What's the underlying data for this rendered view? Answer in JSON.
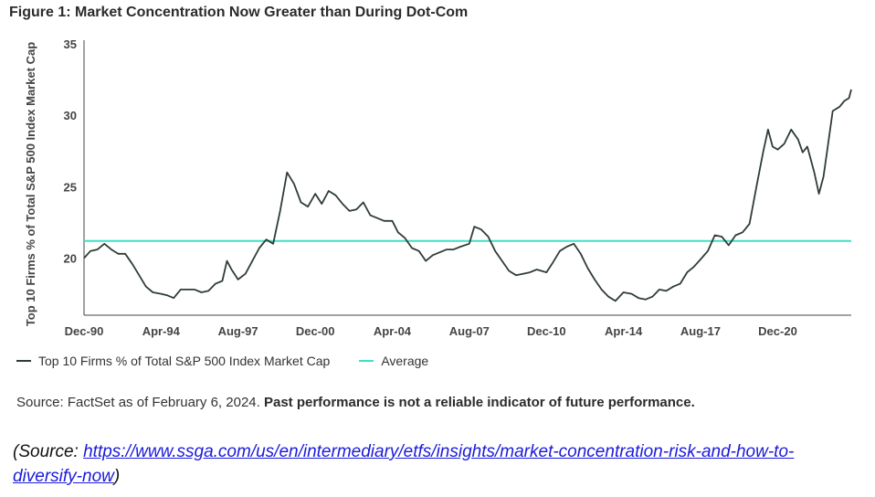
{
  "figure_title": "Figure 1: Market Concentration Now Greater than During Dot-Com",
  "legend": {
    "series_label": "Top 10 Firms % of Total S&P 500 Index Market Cap",
    "average_label": "Average"
  },
  "source": {
    "text": "Source: FactSet as of February 6, 2024.",
    "disclaimer": "Past performance is not a reliable indicator of future performance."
  },
  "url_note": {
    "prefix": "(Source: ",
    "link": "https://www.ssga.com/us/en/intermediary/etfs/insights/market-concentration-risk-and-how-to-diversify-now",
    "suffix": ")"
  },
  "colors": {
    "series": "#2f3d35",
    "average": "#3fe0c5"
  },
  "chart_data": {
    "type": "line",
    "title": "Figure 1: Market Concentration Now Greater than During Dot-Com",
    "ylabel": "Top 10 Firms % of Total S&P 500 Index Market Cap",
    "ylim": [
      16,
      35
    ],
    "xlim": [
      1990.92,
      2024.1
    ],
    "yticks": [
      "20",
      "25",
      "30",
      "35"
    ],
    "xticks": [
      {
        "label": "Dec-90",
        "x": 1990.92
      },
      {
        "label": "Apr-94",
        "x": 1994.25
      },
      {
        "label": "Aug-97",
        "x": 1997.58
      },
      {
        "label": "Dec-00",
        "x": 2000.92
      },
      {
        "label": "Apr-04",
        "x": 2004.25
      },
      {
        "label": "Aug-07",
        "x": 2007.58
      },
      {
        "label": "Dec-10",
        "x": 2010.92
      },
      {
        "label": "Apr-14",
        "x": 2014.25
      },
      {
        "label": "Aug-17",
        "x": 2017.58
      },
      {
        "label": "Dec-20",
        "x": 2020.92
      }
    ],
    "average": 21.2,
    "grid": false,
    "legend_position": "bottom-left",
    "series": [
      {
        "name": "Top 10 Firms % of Total S&P 500 Index Market Cap",
        "points": [
          [
            1990.92,
            20.0
          ],
          [
            1991.2,
            20.5
          ],
          [
            1991.5,
            20.6
          ],
          [
            1991.8,
            21.0
          ],
          [
            1992.1,
            20.6
          ],
          [
            1992.4,
            20.3
          ],
          [
            1992.7,
            20.3
          ],
          [
            1993.0,
            19.6
          ],
          [
            1993.3,
            18.8
          ],
          [
            1993.6,
            18.0
          ],
          [
            1993.9,
            17.6
          ],
          [
            1994.25,
            17.5
          ],
          [
            1994.5,
            17.4
          ],
          [
            1994.8,
            17.2
          ],
          [
            1995.1,
            17.8
          ],
          [
            1995.4,
            17.8
          ],
          [
            1995.7,
            17.8
          ],
          [
            1996.0,
            17.6
          ],
          [
            1996.3,
            17.7
          ],
          [
            1996.6,
            18.2
          ],
          [
            1996.9,
            18.4
          ],
          [
            1997.1,
            19.8
          ],
          [
            1997.3,
            19.2
          ],
          [
            1997.58,
            18.5
          ],
          [
            1997.9,
            18.9
          ],
          [
            1998.2,
            19.8
          ],
          [
            1998.5,
            20.7
          ],
          [
            1998.8,
            21.3
          ],
          [
            1999.1,
            21.0
          ],
          [
            1999.4,
            23.3
          ],
          [
            1999.7,
            26.0
          ],
          [
            2000.0,
            25.2
          ],
          [
            2000.3,
            23.9
          ],
          [
            2000.6,
            23.6
          ],
          [
            2000.92,
            24.5
          ],
          [
            2001.2,
            23.8
          ],
          [
            2001.5,
            24.7
          ],
          [
            2001.8,
            24.4
          ],
          [
            2002.1,
            23.8
          ],
          [
            2002.4,
            23.3
          ],
          [
            2002.7,
            23.4
          ],
          [
            2003.0,
            23.9
          ],
          [
            2003.3,
            23.0
          ],
          [
            2003.6,
            22.8
          ],
          [
            2003.9,
            22.6
          ],
          [
            2004.25,
            22.6
          ],
          [
            2004.5,
            21.8
          ],
          [
            2004.8,
            21.4
          ],
          [
            2005.1,
            20.7
          ],
          [
            2005.4,
            20.5
          ],
          [
            2005.7,
            19.8
          ],
          [
            2006.0,
            20.2
          ],
          [
            2006.3,
            20.4
          ],
          [
            2006.6,
            20.6
          ],
          [
            2006.9,
            20.6
          ],
          [
            2007.2,
            20.8
          ],
          [
            2007.58,
            21.0
          ],
          [
            2007.8,
            22.2
          ],
          [
            2008.1,
            22.0
          ],
          [
            2008.4,
            21.5
          ],
          [
            2008.7,
            20.5
          ],
          [
            2009.0,
            19.8
          ],
          [
            2009.3,
            19.1
          ],
          [
            2009.6,
            18.8
          ],
          [
            2009.9,
            18.9
          ],
          [
            2010.2,
            19.0
          ],
          [
            2010.5,
            19.2
          ],
          [
            2010.92,
            19.0
          ],
          [
            2011.2,
            19.7
          ],
          [
            2011.5,
            20.5
          ],
          [
            2011.8,
            20.8
          ],
          [
            2012.1,
            21.0
          ],
          [
            2012.4,
            20.3
          ],
          [
            2012.7,
            19.3
          ],
          [
            2013.0,
            18.5
          ],
          [
            2013.3,
            17.8
          ],
          [
            2013.6,
            17.3
          ],
          [
            2013.9,
            17.0
          ],
          [
            2014.25,
            17.6
          ],
          [
            2014.6,
            17.5
          ],
          [
            2014.9,
            17.2
          ],
          [
            2015.2,
            17.1
          ],
          [
            2015.5,
            17.3
          ],
          [
            2015.8,
            17.8
          ],
          [
            2016.1,
            17.7
          ],
          [
            2016.4,
            18.0
          ],
          [
            2016.7,
            18.2
          ],
          [
            2017.0,
            19.0
          ],
          [
            2017.3,
            19.4
          ],
          [
            2017.58,
            19.9
          ],
          [
            2017.9,
            20.5
          ],
          [
            2018.2,
            21.6
          ],
          [
            2018.5,
            21.5
          ],
          [
            2018.8,
            20.9
          ],
          [
            2019.1,
            21.6
          ],
          [
            2019.4,
            21.8
          ],
          [
            2019.7,
            22.4
          ],
          [
            2020.0,
            25.0
          ],
          [
            2020.3,
            27.5
          ],
          [
            2020.5,
            29.0
          ],
          [
            2020.7,
            27.8
          ],
          [
            2020.92,
            27.6
          ],
          [
            2021.2,
            28.0
          ],
          [
            2021.5,
            29.0
          ],
          [
            2021.8,
            28.3
          ],
          [
            2022.0,
            27.4
          ],
          [
            2022.2,
            27.8
          ],
          [
            2022.5,
            26.0
          ],
          [
            2022.7,
            24.5
          ],
          [
            2022.9,
            25.7
          ],
          [
            2023.1,
            28.0
          ],
          [
            2023.3,
            30.3
          ],
          [
            2023.6,
            30.6
          ],
          [
            2023.8,
            31.0
          ],
          [
            2024.0,
            31.2
          ],
          [
            2024.1,
            31.8
          ]
        ]
      }
    ]
  }
}
